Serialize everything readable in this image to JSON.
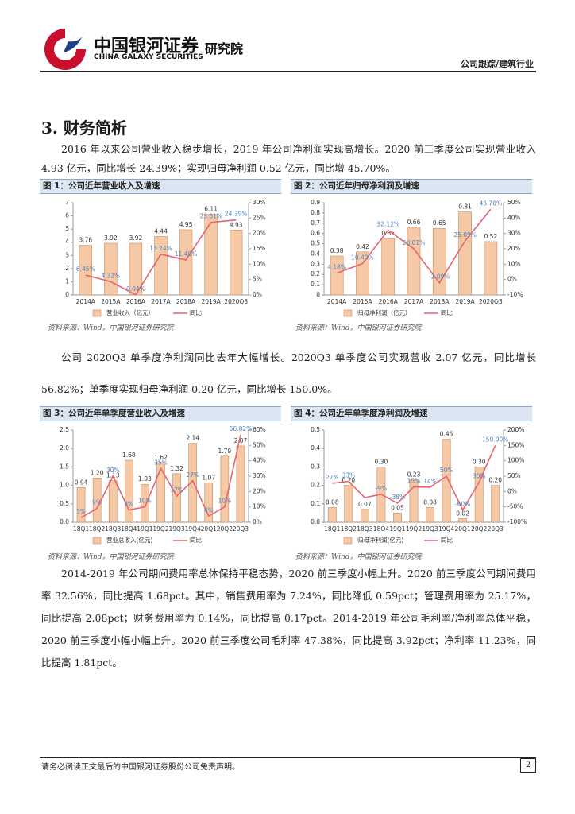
{
  "header": {
    "logo_cn": "中国银河证券",
    "logo_en": "CHINA GALAXY SECURITIES",
    "institute": "研究院",
    "category": "公司跟踪/建筑行业"
  },
  "section_title": "3. 财务简析",
  "paragraphs": [
    "2016 年以来公司营业收入稳步增长，2019 年公司净利润实现高增长。2020 前三季度公司实现营业收入 4.93 亿元，同比增长 24.39%；实现归母净利润 0.52 亿元，同比增 45.70%。",
    "公司 2020Q3 单季度净利润同比去年大幅增长。2020Q3 单季度公司实现营收 2.07 亿元，同比增长 56.82%；单季度实现归母净利润 0.20 亿元，同比增长 150.0%。",
    "2014-2019 年公司期间费用率总体保持平稳态势，2020 前三季度小幅上升。2020 前三季度公司期间费用率 32.56%，同比提高 1.68pct。其中，销售费用率为 7.24%，同比降低 0.59pct；管理费用率为 25.17%，同比提高 2.08pct；财务费用率为 0.14%，同比提高 0.17pct。2014-2019 年公司毛利率/净利率总体平稳，2020 前三季度小幅小幅上升。2020 前三季度公司毛利率 47.38%，同比提高 3.92pct；净利率 11.23%，同比提高 1.81pct。"
  ],
  "chart_data": [
    {
      "type": "combo",
      "title": "图 1：公司近年营业收入及增速",
      "source": "资料来源：Wind，中国银河证券研究院",
      "categories": [
        "2014A",
        "2015A",
        "2016A",
        "2017A",
        "2018A",
        "2019A",
        "2020Q3"
      ],
      "ylim": [
        0,
        7
      ],
      "yticks": [
        0,
        1,
        2,
        3,
        4,
        5,
        6,
        7
      ],
      "y2lim": [
        0,
        30
      ],
      "y2ticks": [
        {
          "value": 0,
          "label": "0%"
        },
        {
          "value": 5,
          "label": "5%"
        },
        {
          "value": 10,
          "label": "10%"
        },
        {
          "value": 15,
          "label": "15%"
        },
        {
          "value": 20,
          "label": "20%"
        },
        {
          "value": 25,
          "label": "25%"
        },
        {
          "value": 30,
          "label": "30%"
        }
      ],
      "series": [
        {
          "name": "营业收入（亿元）",
          "type": "bar",
          "color": "#f5c9a6",
          "values": [
            3.76,
            3.92,
            3.92,
            4.44,
            4.95,
            6.11,
            4.93
          ],
          "value_labels": [
            "3.76",
            "3.92",
            "3.92",
            "4.44",
            "4.95",
            "6.11",
            "4.93"
          ]
        },
        {
          "name": "同比",
          "type": "line",
          "axis": "y2",
          "color": "#e8646e",
          "values": [
            6.45,
            4.32,
            0.04,
            13.24,
            11.4,
            23.61,
            24.39
          ],
          "value_labels": [
            "6.45%",
            "4.32%",
            "0.04%",
            "13.24%",
            "11.40%",
            "23.61%",
            "24.39%"
          ]
        }
      ]
    },
    {
      "type": "combo",
      "title": "图 2：公司近年归母净利润及增速",
      "source": "资料来源：Wind，中国银河证券研究院",
      "categories": [
        "2014A",
        "2015A",
        "2016A",
        "2017A",
        "2018A",
        "2019A",
        "2020Q3"
      ],
      "ylim": [
        0,
        0.9
      ],
      "yticks": [
        0,
        0.1,
        0.2,
        0.3,
        0.4,
        0.5,
        0.6,
        0.7,
        0.8,
        0.9
      ],
      "y2lim": [
        -10,
        50
      ],
      "y2ticks": [
        {
          "value": -10,
          "label": "-10%"
        },
        {
          "value": 0,
          "label": "0%"
        },
        {
          "value": 10,
          "label": "10%"
        },
        {
          "value": 20,
          "label": "20%"
        },
        {
          "value": 30,
          "label": "30%"
        },
        {
          "value": 40,
          "label": "40%"
        },
        {
          "value": 50,
          "label": "50%"
        }
      ],
      "series": [
        {
          "name": "归母净利润（亿元）",
          "type": "bar",
          "color": "#f5c9a6",
          "values": [
            0.38,
            0.42,
            0.55,
            0.66,
            0.65,
            0.81,
            0.52
          ],
          "value_labels": [
            "0.38",
            "0.42",
            "0.55",
            "0.66",
            "0.65",
            "0.81",
            "0.52"
          ]
        },
        {
          "name": "同比",
          "type": "line",
          "axis": "y2",
          "color": "#e8646e",
          "values": [
            4.18,
            10.4,
            32.12,
            20.01,
            -2.09,
            25.09,
            45.7
          ],
          "value_labels": [
            "4.18%",
            "10.40%",
            "32.12%",
            "20.01%",
            "-2.09%",
            "25.09%",
            "45.70%"
          ]
        }
      ]
    },
    {
      "type": "combo",
      "title": "图 3：公司近年单季度营业收入及增速",
      "source": "资料来源：Wind，中国银河证券研究院",
      "categories": [
        "18Q1",
        "18Q2",
        "18Q3",
        "18Q4",
        "19Q1",
        "19Q2",
        "19Q3",
        "19Q4",
        "20Q1",
        "20Q2",
        "20Q3"
      ],
      "ylim": [
        0,
        2.5
      ],
      "yticks": [
        {
          "value": 0,
          "label": "0.0"
        },
        0.5,
        {
          "value": 1,
          "label": "1.0"
        },
        1.5,
        {
          "value": 2,
          "label": "2.0"
        },
        2.5
      ],
      "y2lim": [
        0,
        60
      ],
      "y2ticks": [
        {
          "value": 0,
          "label": "0%"
        },
        {
          "value": 10,
          "label": "10%"
        },
        {
          "value": 20,
          "label": "20%"
        },
        {
          "value": 30,
          "label": "30%"
        },
        {
          "value": 40,
          "label": "40%"
        },
        {
          "value": 50,
          "label": "50%"
        },
        {
          "value": 60,
          "label": "60%"
        }
      ],
      "series": [
        {
          "name": "营业总收入(亿元)",
          "type": "bar",
          "color": "#f5c9a6",
          "values": [
            0.94,
            1.2,
            1.13,
            1.68,
            1.03,
            1.62,
            1.32,
            2.14,
            1.07,
            1.79,
            2.07
          ],
          "value_labels": [
            "0.94",
            "1.20",
            "1.13",
            "1.68",
            "1.03",
            "1.62",
            "1.32",
            "2.14",
            "1.07",
            "1.79",
            "2.07"
          ]
        },
        {
          "name": "同比",
          "type": "line",
          "axis": "y2",
          "color": "#e8646e",
          "values": [
            3,
            9,
            30,
            8,
            10,
            35,
            17,
            27,
            4,
            10,
            56.82
          ],
          "value_labels": [
            "3%",
            "9%",
            "30%",
            "8%",
            "10%",
            "35%",
            "17%",
            "27%",
            "4%",
            "10%",
            "56.82%"
          ]
        }
      ]
    },
    {
      "type": "combo",
      "title": "图 4：公司近年单季度净利润及增速",
      "source": "资料来源：Wind，中国银河证券研究院",
      "categories": [
        "18Q1",
        "18Q2",
        "18Q3",
        "18Q4",
        "19Q1",
        "19Q2",
        "19Q3",
        "19Q4",
        "20Q1",
        "20Q2",
        "20Q3"
      ],
      "ylim": [
        0,
        0.5
      ],
      "yticks": [
        {
          "value": 0,
          "label": "0.0"
        },
        0.1,
        0.2,
        0.3,
        0.4,
        0.5
      ],
      "y2lim": [
        -100,
        200
      ],
      "y2ticks": [
        {
          "value": -100,
          "label": "-100%"
        },
        {
          "value": -50,
          "label": "-50%"
        },
        {
          "value": 0,
          "label": "0%"
        },
        {
          "value": 50,
          "label": "50%"
        },
        {
          "value": 100,
          "label": "100%"
        },
        {
          "value": 150,
          "label": "150%"
        },
        {
          "value": 200,
          "label": "200%"
        }
      ],
      "series": [
        {
          "name": "归母净利润(亿元)",
          "type": "bar",
          "color": "#f5c9a6",
          "values": [
            0.08,
            0.2,
            0.07,
            0.3,
            0.05,
            0.23,
            0.08,
            0.45,
            0.02,
            0.3,
            0.2
          ],
          "value_labels": [
            "0.08",
            "0.20",
            "0.07",
            "0.30",
            "0.05",
            "0.23",
            "0.08",
            "0.45",
            "0.02",
            "0.30",
            "0.20"
          ]
        },
        {
          "name": "同比",
          "type": "line",
          "axis": "y2",
          "color": "#e8646e",
          "values": [
            27,
            33,
            -20,
            -9,
            -38,
            15,
            14,
            50,
            -60,
            30,
            150.0
          ],
          "value_labels": [
            "27%",
            "33%",
            null,
            "-9%",
            "-38%",
            "15%",
            "14%",
            "50%",
            "-60%",
            "30%",
            "150.00%"
          ]
        }
      ]
    }
  ],
  "footer": {
    "disclaimer": "请务必阅读正文最后的中国银河证券股份公司免责声明。",
    "page": "2"
  }
}
